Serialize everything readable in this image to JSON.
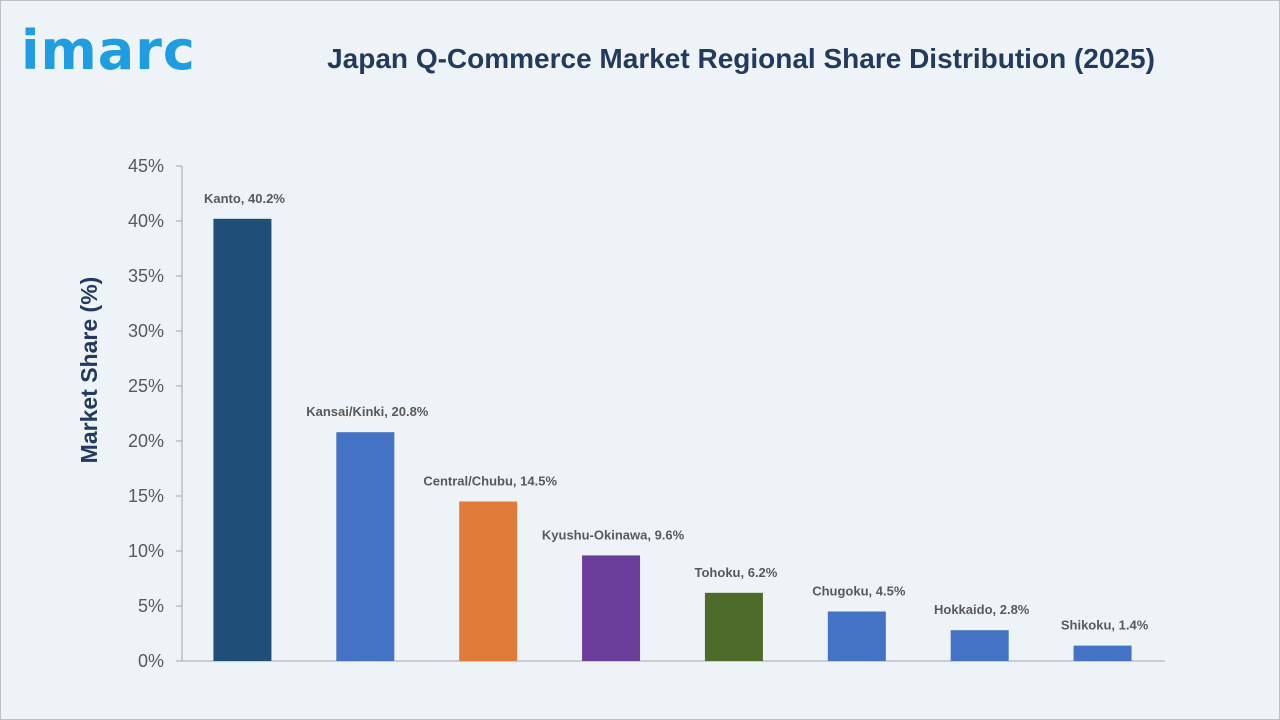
{
  "logo": {
    "text": "imarc"
  },
  "chart_data": {
    "type": "bar",
    "title": "Japan Q-Commerce Market Regional Share Distribution (2025)",
    "xlabel": "",
    "ylabel": "Market Share (%)",
    "ylim": [
      0,
      45
    ],
    "yticks": [
      "0%",
      "5%",
      "10%",
      "15%",
      "20%",
      "25%",
      "30%",
      "35%",
      "40%",
      "45%"
    ],
    "grid": false,
    "categories": [
      "Kanto",
      "Kansai/Kinki",
      "Central/Chubu",
      "Kyushu-Okinawa",
      "Tohoku",
      "Chugoku",
      "Hokkaido",
      "Shikoku"
    ],
    "values": [
      40.2,
      20.8,
      14.5,
      9.6,
      6.2,
      4.5,
      2.8,
      1.4
    ],
    "data_labels": [
      "Kanto, 40.2%",
      "Kansai/Kinki, 20.8%",
      "Central/Chubu, 14.5%",
      "Kyushu-Okinawa, 9.6%",
      "Tohoku, 6.2%",
      "Chugoku, 4.5%",
      "Hokkaido, 2.8%",
      "Shikoku, 1.4%"
    ],
    "colors": [
      "#1f4e79",
      "#4472c4",
      "#e07b39",
      "#6a3d9a",
      "#4f6b2a",
      "#4472c4",
      "#4472c4",
      "#4472c4"
    ]
  }
}
